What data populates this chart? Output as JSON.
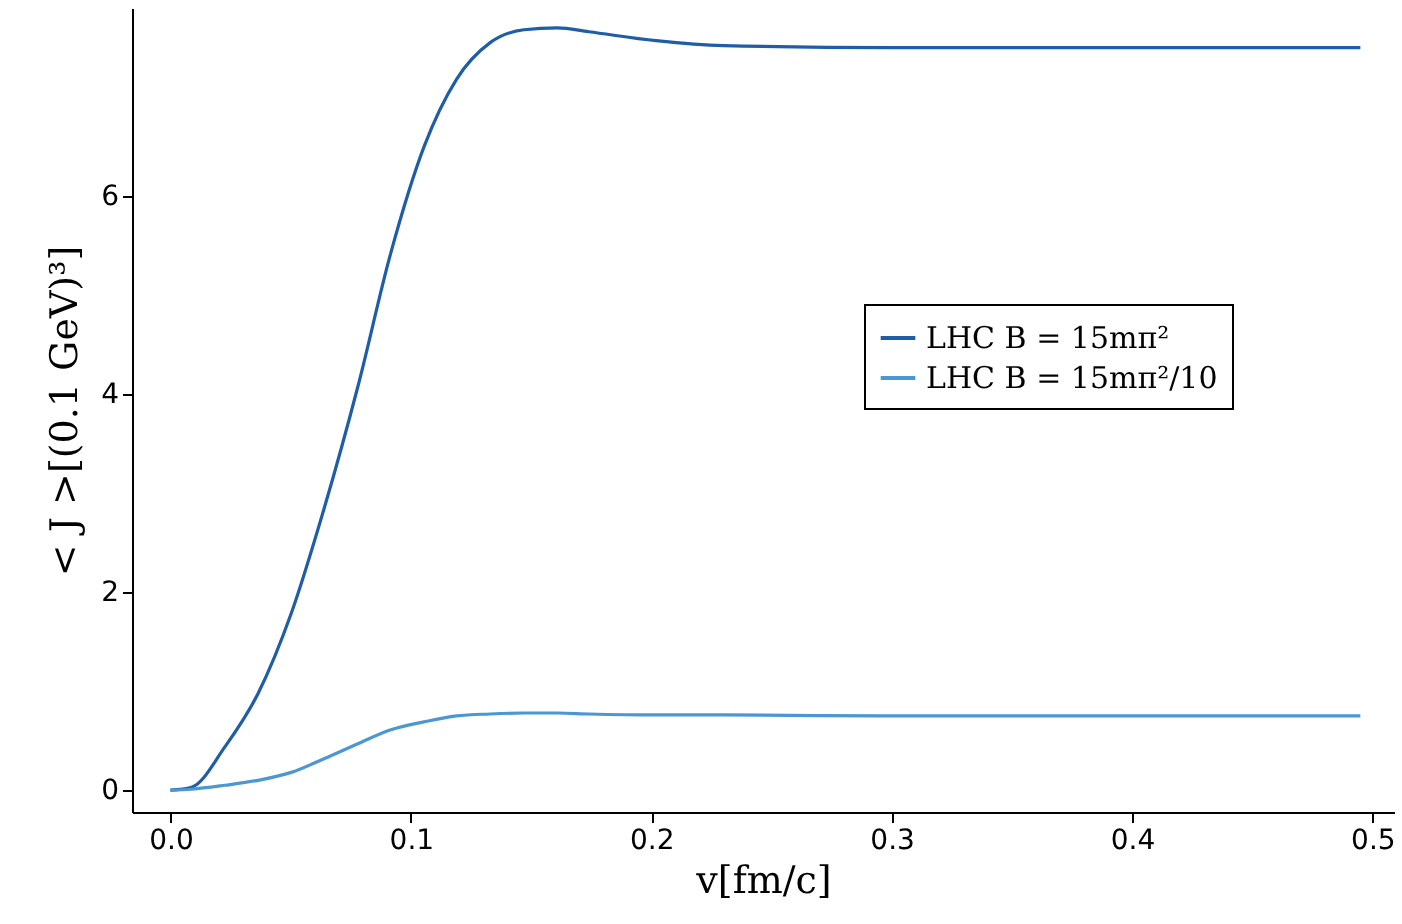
{
  "chart_data": {
    "type": "line",
    "xlabel": "v[fm/c]",
    "ylabel": "< J >[(0.1 GeV)³]",
    "xlim": [
      -0.016,
      0.509
    ],
    "xticks": [
      {
        "value": 0,
        "label": "0.0"
      },
      0.1,
      0.2,
      0.3,
      0.4,
      0.5
    ],
    "ylim": [
      -0.22,
      7.9
    ],
    "yticks": [
      0,
      2,
      4,
      6
    ],
    "grid": false,
    "legend": "right",
    "marker": "none",
    "line_style": "solid",
    "x": [
      0,
      0.0088,
      0.0227,
      0.0365,
      0.0503,
      0.0641,
      0.078,
      0.0917,
      0.1055,
      0.119,
      0.133,
      0.147,
      0.161,
      0.174,
      0.202,
      0.23,
      0.3,
      0.4,
      0.495
    ],
    "series": [
      {
        "name": "LHC B = 15mπ²",
        "color": "#1f5da6",
        "values": [
          0,
          0.03,
          0.44,
          0.98,
          1.79,
          2.86,
          4.08,
          5.43,
          6.5,
          7.18,
          7.55,
          7.68,
          7.7,
          7.66,
          7.57,
          7.52,
          7.5,
          7.5,
          7.5
        ]
      },
      {
        "name": "LHC B = 15mπ²/10",
        "color": "#4b97d3",
        "values": [
          0,
          0.01,
          0.05,
          0.1,
          0.18,
          0.32,
          0.47,
          0.61,
          0.69,
          0.75,
          0.77,
          0.78,
          0.78,
          0.77,
          0.76,
          0.76,
          0.75,
          0.75,
          0.75
        ]
      }
    ]
  }
}
